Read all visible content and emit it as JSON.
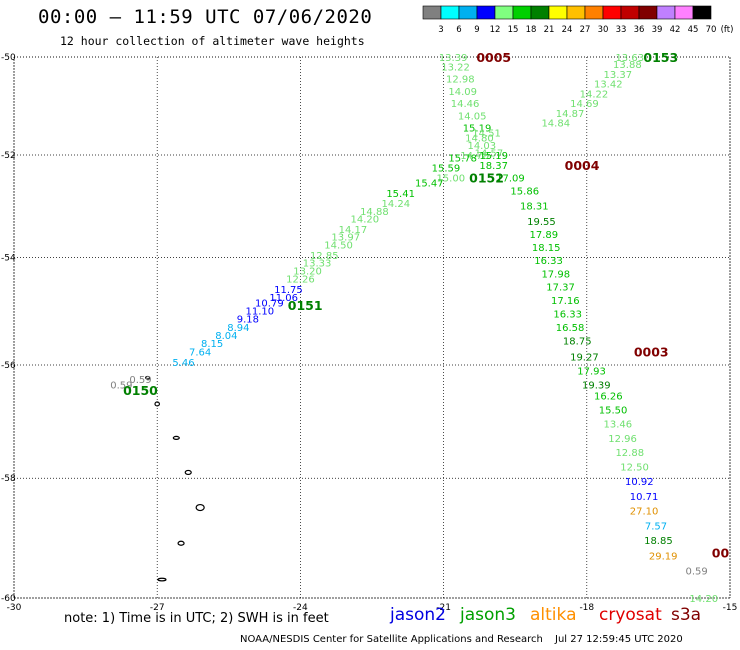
{
  "header": {
    "title": "00:00 – 11:59 UTC 07/06/2020",
    "subtitle": "12 hour collection of altimeter wave heights"
  },
  "colorbar": {
    "labels": [
      "3",
      "6",
      "9",
      "12",
      "15",
      "18",
      "21",
      "24",
      "27",
      "30",
      "33",
      "36",
      "39",
      "42",
      "45",
      "70",
      "(ft)"
    ],
    "colors": [
      "#808080",
      "#00ffff",
      "#00b0f0",
      "#0000ff",
      "#80ff80",
      "#00d000",
      "#008000",
      "#ffff00",
      "#ffc000",
      "#ff8000",
      "#ff0000",
      "#c00000",
      "#800000",
      "#c080ff",
      "#ff80ff",
      "#000000"
    ]
  },
  "axes": {
    "x_ticks": [
      "-30",
      "-27",
      "-24",
      "-21",
      "-18",
      "-15"
    ],
    "y_ticks": [
      "-50",
      "-52",
      "-54",
      "-56",
      "-58",
      "-60"
    ]
  },
  "wave_colors": {
    "gray": "#808080",
    "cyan": "#00b0f0",
    "blue": "#0000ff",
    "lightgreen": "#70e070",
    "green": "#00c000",
    "darkgreen": "#008000",
    "orange": "#e09000",
    "maroon": "#800000"
  },
  "passes": [
    {
      "label": "0005",
      "lon": -19.95,
      "lat": -50.0,
      "color": "maroon"
    },
    {
      "label": "0153",
      "lon": -16.45,
      "lat": -50.0,
      "color": "darkgreen"
    },
    {
      "label": "0004",
      "lon": -18.1,
      "lat": -52.2,
      "color": "maroon"
    },
    {
      "label": "0152",
      "lon": -20.1,
      "lat": -52.45,
      "color": "darkgreen"
    },
    {
      "label": "0151",
      "lon": -23.9,
      "lat": -54.9,
      "color": "darkgreen"
    },
    {
      "label": "0003",
      "lon": -16.65,
      "lat": -55.75,
      "color": "maroon"
    },
    {
      "label": "0150",
      "lon": -27.35,
      "lat": -56.45,
      "color": "darkgreen"
    },
    {
      "label": "00",
      "lon": -15.2,
      "lat": -59.25,
      "color": "maroon"
    }
  ],
  "wave_heights": [
    {
      "value": "13.39",
      "lon": -20.8,
      "lat": -50.0,
      "color": "lightgreen"
    },
    {
      "value": "13.22",
      "lon": -20.75,
      "lat": -50.2,
      "color": "lightgreen"
    },
    {
      "value": "12.98",
      "lon": -20.65,
      "lat": -50.45,
      "color": "lightgreen"
    },
    {
      "value": "14.09",
      "lon": -20.6,
      "lat": -50.7,
      "color": "lightgreen"
    },
    {
      "value": "14.46",
      "lon": -20.55,
      "lat": -50.95,
      "color": "lightgreen"
    },
    {
      "value": "14.05",
      "lon": -20.4,
      "lat": -51.2,
      "color": "lightgreen"
    },
    {
      "value": "15.19",
      "lon": -20.3,
      "lat": -51.45,
      "color": "green"
    },
    {
      "value": "14.51",
      "lon": -20.1,
      "lat": -51.55,
      "color": "lightgreen"
    },
    {
      "value": "14.80",
      "lon": -20.25,
      "lat": -51.65,
      "color": "lightgreen"
    },
    {
      "value": "14.03",
      "lon": -20.2,
      "lat": -51.8,
      "color": "lightgreen"
    },
    {
      "value": "14.57",
      "lon": -20.05,
      "lat": -51.95,
      "color": "lightgreen"
    },
    {
      "value": "14.78",
      "lon": -20.35,
      "lat": -52.0,
      "color": "lightgreen"
    },
    {
      "value": "15.19",
      "lon": -19.95,
      "lat": -52.0,
      "color": "green"
    },
    {
      "value": "15.78",
      "lon": -20.6,
      "lat": -52.05,
      "color": "green"
    },
    {
      "value": "15.59",
      "lon": -20.95,
      "lat": -52.25,
      "color": "green"
    },
    {
      "value": "18.37",
      "lon": -19.95,
      "lat": -52.2,
      "color": "green"
    },
    {
      "value": "15.00",
      "lon": -20.85,
      "lat": -52.45,
      "color": "lightgreen"
    },
    {
      "value": "17.09",
      "lon": -19.6,
      "lat": -52.45,
      "color": "green"
    },
    {
      "value": "15.47",
      "lon": -21.3,
      "lat": -52.55,
      "color": "green"
    },
    {
      "value": "15.86",
      "lon": -19.3,
      "lat": -52.7,
      "color": "green"
    },
    {
      "value": "15.41",
      "lon": -21.9,
      "lat": -52.75,
      "color": "green"
    },
    {
      "value": "18.31",
      "lon": -19.1,
      "lat": -53.0,
      "color": "green"
    },
    {
      "value": "14.24",
      "lon": -22.0,
      "lat": -52.95,
      "color": "lightgreen"
    },
    {
      "value": "14.88",
      "lon": -22.45,
      "lat": -53.1,
      "color": "lightgreen"
    },
    {
      "value": "19.55",
      "lon": -18.95,
      "lat": -53.3,
      "color": "darkgreen"
    },
    {
      "value": "14.20",
      "lon": -22.65,
      "lat": -53.25,
      "color": "lightgreen"
    },
    {
      "value": "14.17",
      "lon": -22.9,
      "lat": -53.45,
      "color": "lightgreen"
    },
    {
      "value": "17.89",
      "lon": -18.9,
      "lat": -53.55,
      "color": "green"
    },
    {
      "value": "13.97",
      "lon": -23.05,
      "lat": -53.6,
      "color": "lightgreen"
    },
    {
      "value": "14.50",
      "lon": -23.2,
      "lat": -53.75,
      "color": "lightgreen"
    },
    {
      "value": "18.15",
      "lon": -18.85,
      "lat": -53.8,
      "color": "green"
    },
    {
      "value": "12.85",
      "lon": -23.5,
      "lat": -53.95,
      "color": "lightgreen"
    },
    {
      "value": "16.33",
      "lon": -18.8,
      "lat": -54.05,
      "color": "green"
    },
    {
      "value": "13.33",
      "lon": -23.65,
      "lat": -54.1,
      "color": "lightgreen"
    },
    {
      "value": "13.20",
      "lon": -23.85,
      "lat": -54.25,
      "color": "lightgreen"
    },
    {
      "value": "17.98",
      "lon": -18.65,
      "lat": -54.3,
      "color": "green"
    },
    {
      "value": "12.26",
      "lon": -24.0,
      "lat": -54.4,
      "color": "lightgreen"
    },
    {
      "value": "17.37",
      "lon": -18.55,
      "lat": -54.55,
      "color": "green"
    },
    {
      "value": "11.75",
      "lon": -24.25,
      "lat": -54.6,
      "color": "blue"
    },
    {
      "value": "11.06",
      "lon": -24.35,
      "lat": -54.75,
      "color": "blue"
    },
    {
      "value": "17.16",
      "lon": -18.45,
      "lat": -54.8,
      "color": "green"
    },
    {
      "value": "10.79",
      "lon": -24.65,
      "lat": -54.85,
      "color": "blue"
    },
    {
      "value": "11.10",
      "lon": -24.85,
      "lat": -55.0,
      "color": "blue"
    },
    {
      "value": "16.33",
      "lon": -18.4,
      "lat": -55.05,
      "color": "green"
    },
    {
      "value": "9.18",
      "lon": -25.1,
      "lat": -55.15,
      "color": "blue"
    },
    {
      "value": "8.94",
      "lon": -25.3,
      "lat": -55.3,
      "color": "cyan"
    },
    {
      "value": "16.58",
      "lon": -18.35,
      "lat": -55.3,
      "color": "green"
    },
    {
      "value": "8.04",
      "lon": -25.55,
      "lat": -55.45,
      "color": "cyan"
    },
    {
      "value": "8.15",
      "lon": -25.85,
      "lat": -55.6,
      "color": "cyan"
    },
    {
      "value": "18.75",
      "lon": -18.2,
      "lat": -55.55,
      "color": "darkgreen"
    },
    {
      "value": "7.64",
      "lon": -26.1,
      "lat": -55.75,
      "color": "cyan"
    },
    {
      "value": "19.27",
      "lon": -18.05,
      "lat": -55.85,
      "color": "darkgreen"
    },
    {
      "value": "5.46",
      "lon": -26.45,
      "lat": -55.95,
      "color": "cyan"
    },
    {
      "value": "17.93",
      "lon": -17.9,
      "lat": -56.1,
      "color": "green"
    },
    {
      "value": "19.39",
      "lon": -17.8,
      "lat": -56.35,
      "color": "darkgreen"
    },
    {
      "value": "16.26",
      "lon": -17.55,
      "lat": -56.55,
      "color": "green"
    },
    {
      "value": "15.50",
      "lon": -17.45,
      "lat": -56.8,
      "color": "green"
    },
    {
      "value": "13.46",
      "lon": -17.35,
      "lat": -57.05,
      "color": "lightgreen"
    },
    {
      "value": "12.96",
      "lon": -17.25,
      "lat": -57.3,
      "color": "lightgreen"
    },
    {
      "value": "12.88",
      "lon": -17.1,
      "lat": -57.55,
      "color": "lightgreen"
    },
    {
      "value": "12.50",
      "lon": -17.0,
      "lat": -57.8,
      "color": "lightgreen"
    },
    {
      "value": "10.92",
      "lon": -16.9,
      "lat": -58.05,
      "color": "blue"
    },
    {
      "value": "10.71",
      "lon": -16.8,
      "lat": -58.3,
      "color": "blue"
    },
    {
      "value": "27.10",
      "lon": -16.8,
      "lat": -58.55,
      "color": "orange"
    },
    {
      "value": "7.57",
      "lon": -16.55,
      "lat": -58.8,
      "color": "cyan"
    },
    {
      "value": "18.85",
      "lon": -16.5,
      "lat": -59.05,
      "color": "darkgreen"
    },
    {
      "value": "29.19",
      "lon": -16.4,
      "lat": -59.3,
      "color": "orange"
    },
    {
      "value": "0.59",
      "lon": -15.7,
      "lat": -59.55,
      "color": "gray"
    },
    {
      "value": "14.20",
      "lon": -15.55,
      "lat": -60.0,
      "color": "lightgreen"
    },
    {
      "value": "0.59",
      "lon": -27.75,
      "lat": -56.35,
      "color": "gray"
    },
    {
      "value": "0.59",
      "lon": -27.35,
      "lat": -56.25,
      "color": "gray"
    },
    {
      "value": "13.63",
      "lon": -17.1,
      "lat": -50.0,
      "color": "lightgreen"
    },
    {
      "value": "13.88",
      "lon": -17.15,
      "lat": -50.15,
      "color": "lightgreen"
    },
    {
      "value": "13.37",
      "lon": -17.35,
      "lat": -50.35,
      "color": "lightgreen"
    },
    {
      "value": "13.42",
      "lon": -17.55,
      "lat": -50.55,
      "color": "lightgreen"
    },
    {
      "value": "14.22",
      "lon": -17.85,
      "lat": -50.75,
      "color": "lightgreen"
    },
    {
      "value": "14.69",
      "lon": -18.05,
      "lat": -50.95,
      "color": "lightgreen"
    },
    {
      "value": "14.87",
      "lon": -18.35,
      "lat": -51.15,
      "color": "lightgreen"
    },
    {
      "value": "14.84",
      "lon": -18.65,
      "lat": -51.35,
      "color": "lightgreen"
    }
  ],
  "notes": {
    "text": "note: 1) Time is in UTC; 2) SWH is in feet"
  },
  "legend": {
    "jason2": {
      "label": "jason2",
      "color": "#0000e0"
    },
    "jason3": {
      "label": "jason3",
      "color": "#00a000"
    },
    "altika": {
      "label": "altika",
      "color": "#ff9000"
    },
    "cryosat": {
      "label": "cryosat",
      "color": "#e00000"
    },
    "s3a": {
      "label": "s3a",
      "color": "#800000"
    }
  },
  "footer": {
    "left": "NOAA/NESDIS Center for Satellite Applications and Research",
    "right": "Jul 27 12:59:45 UTC 2020"
  }
}
